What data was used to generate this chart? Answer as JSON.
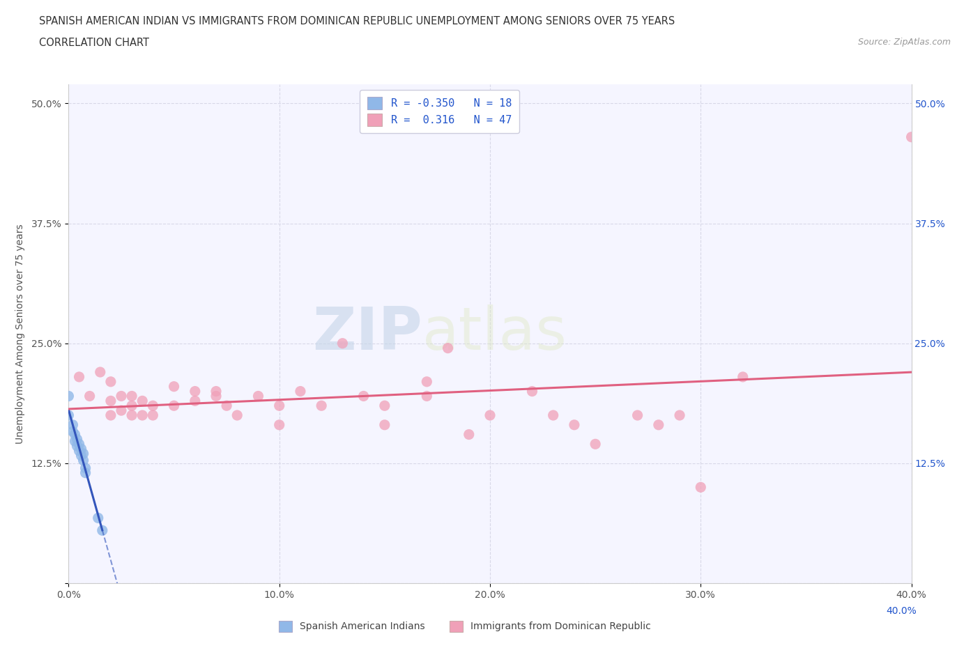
{
  "title_line1": "SPANISH AMERICAN INDIAN VS IMMIGRANTS FROM DOMINICAN REPUBLIC UNEMPLOYMENT AMONG SENIORS OVER 75 YEARS",
  "title_line2": "CORRELATION CHART",
  "source_text": "Source: ZipAtlas.com",
  "ylabel": "Unemployment Among Seniors over 75 years",
  "watermark_zip": "ZIP",
  "watermark_atlas": "atlas",
  "xmin": 0.0,
  "xmax": 0.4,
  "ymin": 0.0,
  "ymax": 0.52,
  "xticks": [
    0.0,
    0.1,
    0.2,
    0.3,
    0.4
  ],
  "xtick_labels": [
    "0.0%",
    "10.0%",
    "20.0%",
    "30.0%",
    "40.0%"
  ],
  "yticks": [
    0.0,
    0.125,
    0.25,
    0.375,
    0.5
  ],
  "ytick_labels": [
    "",
    "12.5%",
    "25.0%",
    "37.5%",
    "50.0%"
  ],
  "legend_label1": "Spanish American Indians",
  "legend_label2": "Immigrants from Dominican Republic",
  "blue_R": -0.35,
  "blue_N": 18,
  "pink_R": 0.316,
  "pink_N": 47,
  "blue_color": "#90b8e8",
  "pink_color": "#f0a0b8",
  "blue_line_color": "#3355bb",
  "pink_line_color": "#e06080",
  "blue_scatter": [
    [
      0.0,
      0.195
    ],
    [
      0.0,
      0.175
    ],
    [
      0.002,
      0.165
    ],
    [
      0.002,
      0.158
    ],
    [
      0.003,
      0.155
    ],
    [
      0.003,
      0.148
    ],
    [
      0.004,
      0.15
    ],
    [
      0.004,
      0.143
    ],
    [
      0.005,
      0.145
    ],
    [
      0.005,
      0.138
    ],
    [
      0.006,
      0.14
    ],
    [
      0.006,
      0.133
    ],
    [
      0.007,
      0.135
    ],
    [
      0.007,
      0.128
    ],
    [
      0.008,
      0.12
    ],
    [
      0.008,
      0.115
    ],
    [
      0.014,
      0.068
    ],
    [
      0.016,
      0.055
    ]
  ],
  "pink_scatter": [
    [
      0.005,
      0.215
    ],
    [
      0.01,
      0.195
    ],
    [
      0.015,
      0.22
    ],
    [
      0.02,
      0.21
    ],
    [
      0.02,
      0.19
    ],
    [
      0.02,
      0.175
    ],
    [
      0.025,
      0.195
    ],
    [
      0.025,
      0.18
    ],
    [
      0.03,
      0.185
    ],
    [
      0.03,
      0.175
    ],
    [
      0.03,
      0.195
    ],
    [
      0.035,
      0.19
    ],
    [
      0.035,
      0.175
    ],
    [
      0.04,
      0.185
    ],
    [
      0.04,
      0.175
    ],
    [
      0.05,
      0.205
    ],
    [
      0.05,
      0.185
    ],
    [
      0.06,
      0.2
    ],
    [
      0.06,
      0.19
    ],
    [
      0.07,
      0.195
    ],
    [
      0.07,
      0.2
    ],
    [
      0.075,
      0.185
    ],
    [
      0.08,
      0.175
    ],
    [
      0.09,
      0.195
    ],
    [
      0.1,
      0.185
    ],
    [
      0.1,
      0.165
    ],
    [
      0.11,
      0.2
    ],
    [
      0.12,
      0.185
    ],
    [
      0.13,
      0.25
    ],
    [
      0.14,
      0.195
    ],
    [
      0.15,
      0.165
    ],
    [
      0.15,
      0.185
    ],
    [
      0.17,
      0.195
    ],
    [
      0.17,
      0.21
    ],
    [
      0.18,
      0.245
    ],
    [
      0.19,
      0.155
    ],
    [
      0.2,
      0.175
    ],
    [
      0.22,
      0.2
    ],
    [
      0.23,
      0.175
    ],
    [
      0.24,
      0.165
    ],
    [
      0.25,
      0.145
    ],
    [
      0.27,
      0.175
    ],
    [
      0.28,
      0.165
    ],
    [
      0.29,
      0.175
    ],
    [
      0.3,
      0.1
    ],
    [
      0.32,
      0.215
    ],
    [
      0.4,
      0.465
    ]
  ],
  "background_color": "#ffffff",
  "grid_color": "#d8d8e8",
  "plot_bg_color": "#f5f5ff"
}
